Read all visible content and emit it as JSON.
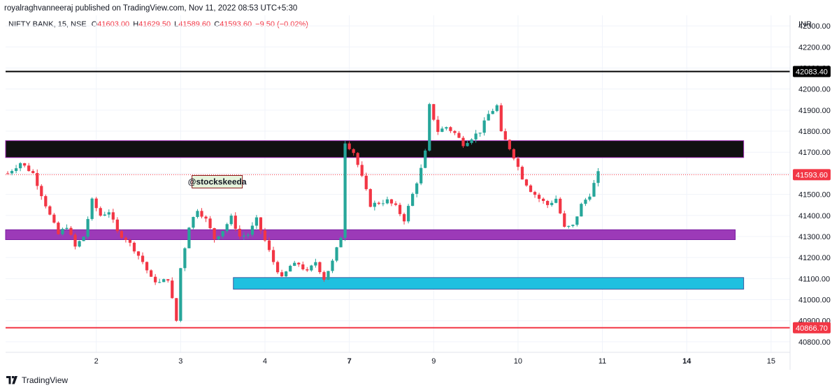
{
  "published": "royalraghvanneeraj published on TradingView.com, Nov 11, 2022 08:53 UTC+5:30",
  "footer": {
    "brand": "TradingView",
    "logo_icon": "tradingview-logo-icon"
  },
  "legend": {
    "symbol": "NIFTY BANK, 15, NSE",
    "o_label": "O",
    "o": "41603.00",
    "h_label": "H",
    "h": "41629.50",
    "l_label": "L",
    "l": "41589.60",
    "c_label": "C",
    "c": "41593.60",
    "change": "−9.50 (−0.02%)"
  },
  "chart_data": {
    "type": "candlestick",
    "currency": "INR",
    "ylim": [
      40750,
      42350
    ],
    "y_ticks": [
      40800,
      40900,
      41000,
      41100,
      41200,
      41300,
      41400,
      41500,
      41600,
      41700,
      41800,
      41900,
      42000,
      42100,
      42200,
      42300
    ],
    "y_tick_labels": [
      "40800.00",
      "40900.00",
      "41000.00",
      "41100.00",
      "41200.00",
      "41300.00",
      "41400.00",
      "41500.00",
      "41600.00",
      "41700.00",
      "41800.00",
      "41900.00",
      "42000.00",
      "42100.00",
      "42200.00",
      "42300.00"
    ],
    "x_ticks": [
      {
        "label": "2",
        "bar": 21,
        "bold": false
      },
      {
        "label": "3",
        "bar": 41,
        "bold": false
      },
      {
        "label": "4",
        "bar": 61,
        "bold": false
      },
      {
        "label": "7",
        "bar": 81,
        "bold": true
      },
      {
        "label": "9",
        "bar": 101,
        "bold": false
      },
      {
        "label": "10",
        "bar": 121,
        "bold": false
      },
      {
        "label": "11",
        "bar": 141,
        "bold": false
      },
      {
        "label": "14",
        "bar": 161,
        "bold": true
      },
      {
        "label": "15",
        "bar": 181,
        "bold": false
      }
    ],
    "bars_visible": 186,
    "up_color": "#26a69a",
    "down_color": "#f23645",
    "last_price": {
      "value": 41593.6,
      "label": "41593.60",
      "color": "#f23645"
    },
    "horizontal_lines": [
      {
        "value": 42083.4,
        "label": "42083.40",
        "color": "#000000"
      },
      {
        "value": 40866.7,
        "label": "40866.70",
        "color": "#f23645"
      }
    ],
    "zones": [
      {
        "name": "black-zone",
        "from_bar": 0,
        "to_bar": 175,
        "top": 41755,
        "bottom": 41675,
        "fill": "#111111",
        "stroke": "#9c27b0"
      },
      {
        "name": "purple-zone",
        "from_bar": 0,
        "to_bar": 173,
        "top": 41332,
        "bottom": 41285,
        "fill": "#9c3ab8",
        "stroke": "#7b1fa2"
      },
      {
        "name": "cyan-zone",
        "from_bar": 54,
        "to_bar": 175,
        "top": 41105,
        "bottom": 41050,
        "fill": "#1fc0e0",
        "stroke": "#3a5aa0"
      }
    ],
    "annotation": {
      "text": "@stockskeeda",
      "bar": 50,
      "value": 41560
    },
    "close_path": [
      [
        0,
        41600
      ],
      [
        3,
        41650
      ],
      [
        6,
        41600
      ],
      [
        8,
        41500
      ],
      [
        10,
        41400
      ],
      [
        12,
        41310
      ],
      [
        14,
        41350
      ],
      [
        16,
        41250
      ],
      [
        18,
        41300
      ],
      [
        20,
        41470
      ],
      [
        22,
        41400
      ],
      [
        24,
        41420
      ],
      [
        26,
        41320
      ],
      [
        28,
        41290
      ],
      [
        30,
        41240
      ],
      [
        32,
        41180
      ],
      [
        34,
        41100
      ],
      [
        36,
        41080
      ],
      [
        38,
        41100
      ],
      [
        40,
        40900
      ],
      [
        41,
        41150
      ],
      [
        43,
        41350
      ],
      [
        45,
        41430
      ],
      [
        47,
        41380
      ],
      [
        49,
        41290
      ],
      [
        51,
        41330
      ],
      [
        53,
        41390
      ],
      [
        55,
        41300
      ],
      [
        57,
        41310
      ],
      [
        59,
        41380
      ],
      [
        61,
        41280
      ],
      [
        63,
        41180
      ],
      [
        65,
        41100
      ],
      [
        67,
        41160
      ],
      [
        69,
        41170
      ],
      [
        71,
        41130
      ],
      [
        73,
        41180
      ],
      [
        75,
        41100
      ],
      [
        77,
        41180
      ],
      [
        79,
        41300
      ],
      [
        80,
        41750
      ],
      [
        82,
        41700
      ],
      [
        84,
        41580
      ],
      [
        86,
        41450
      ],
      [
        88,
        41460
      ],
      [
        90,
        41470
      ],
      [
        92,
        41440
      ],
      [
        94,
        41380
      ],
      [
        96,
        41500
      ],
      [
        98,
        41620
      ],
      [
        99,
        41700
      ],
      [
        100,
        41920
      ],
      [
        102,
        41800
      ],
      [
        104,
        41820
      ],
      [
        106,
        41790
      ],
      [
        108,
        41740
      ],
      [
        110,
        41770
      ],
      [
        112,
        41800
      ],
      [
        114,
        41880
      ],
      [
        116,
        41920
      ],
      [
        117,
        41790
      ],
      [
        119,
        41720
      ],
      [
        120,
        41680
      ],
      [
        122,
        41580
      ],
      [
        124,
        41520
      ],
      [
        126,
        41480
      ],
      [
        128,
        41450
      ],
      [
        130,
        41480
      ],
      [
        132,
        41340
      ],
      [
        134,
        41350
      ],
      [
        136,
        41450
      ],
      [
        138,
        41500
      ],
      [
        140,
        41600
      ]
    ]
  }
}
